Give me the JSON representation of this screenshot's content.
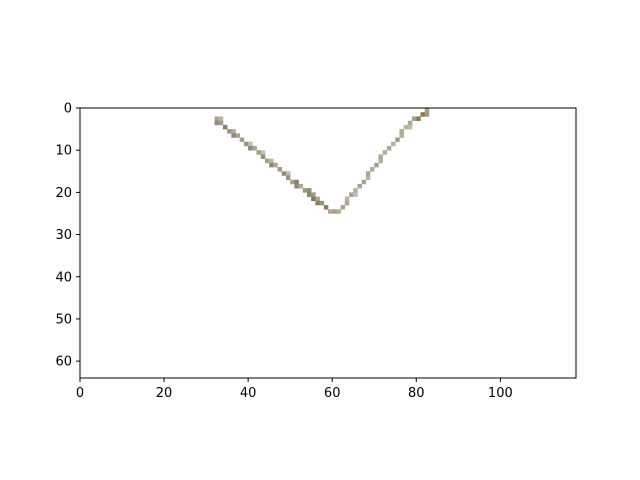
{
  "chart_data": {
    "type": "image",
    "title": "",
    "xlabel": "",
    "ylabel": "",
    "xlim": [
      0,
      118
    ],
    "ylim": [
      64,
      0
    ],
    "xticks": [
      0,
      20,
      40,
      60,
      80,
      100
    ],
    "yticks": [
      0,
      10,
      20,
      30,
      40,
      50,
      60
    ],
    "grid": false,
    "legend": "none",
    "background_color": "#ffffff",
    "image_width": 118,
    "image_height": 64,
    "stroke_pixels": [
      {
        "x": 32,
        "y": 2,
        "color": "#a7a394"
      },
      {
        "x": 33,
        "y": 2,
        "color": "#b8b2a3"
      },
      {
        "x": 32,
        "y": 3,
        "color": "#8f8a79"
      },
      {
        "x": 33,
        "y": 3,
        "color": "#a39d8d"
      },
      {
        "x": 34,
        "y": 4,
        "color": "#8b816b"
      },
      {
        "x": 35,
        "y": 5,
        "color": "#9d9786"
      },
      {
        "x": 36,
        "y": 5,
        "color": "#b0ab9c"
      },
      {
        "x": 36,
        "y": 6,
        "color": "#8f8977"
      },
      {
        "x": 37,
        "y": 6,
        "color": "#aaa596"
      },
      {
        "x": 38,
        "y": 7,
        "color": "#a59f8e"
      },
      {
        "x": 39,
        "y": 8,
        "color": "#9a9481"
      },
      {
        "x": 40,
        "y": 8,
        "color": "#c0bcae"
      },
      {
        "x": 40,
        "y": 9,
        "color": "#8f8a78"
      },
      {
        "x": 41,
        "y": 9,
        "color": "#aba697"
      },
      {
        "x": 42,
        "y": 10,
        "color": "#9f9a8a"
      },
      {
        "x": 43,
        "y": 10,
        "color": "#c3bfb1"
      },
      {
        "x": 43,
        "y": 11,
        "color": "#968f7c"
      },
      {
        "x": 44,
        "y": 12,
        "color": "#a49e8d"
      },
      {
        "x": 45,
        "y": 12,
        "color": "#beb9ab"
      },
      {
        "x": 45,
        "y": 13,
        "color": "#8e8876"
      },
      {
        "x": 46,
        "y": 13,
        "color": "#aba596"
      },
      {
        "x": 47,
        "y": 14,
        "color": "#9d9786"
      },
      {
        "x": 48,
        "y": 15,
        "color": "#8f8873"
      },
      {
        "x": 49,
        "y": 15,
        "color": "#bcb8aa"
      },
      {
        "x": 49,
        "y": 16,
        "color": "#999381"
      },
      {
        "x": 50,
        "y": 17,
        "color": "#a6a090"
      },
      {
        "x": 51,
        "y": 17,
        "color": "#8a8169"
      },
      {
        "x": 51,
        "y": 18,
        "color": "#8d8572"
      },
      {
        "x": 52,
        "y": 18,
        "color": "#aea899"
      },
      {
        "x": 53,
        "y": 19,
        "color": "#9b9583"
      },
      {
        "x": 54,
        "y": 19,
        "color": "#968e79"
      },
      {
        "x": 54,
        "y": 20,
        "color": "#8c8470"
      },
      {
        "x": 55,
        "y": 20,
        "color": "#a29b89"
      },
      {
        "x": 55,
        "y": 21,
        "color": "#86795c"
      },
      {
        "x": 56,
        "y": 21,
        "color": "#a9a28f"
      },
      {
        "x": 56,
        "y": 22,
        "color": "#8a7f65"
      },
      {
        "x": 57,
        "y": 22,
        "color": "#9a8f75"
      },
      {
        "x": 58,
        "y": 23,
        "color": "#8c7f61"
      },
      {
        "x": 59,
        "y": 24,
        "color": "#b3ab96"
      },
      {
        "x": 60,
        "y": 24,
        "color": "#a8a08a"
      },
      {
        "x": 61,
        "y": 24,
        "color": "#b2ac9b"
      },
      {
        "x": 62,
        "y": 23,
        "color": "#a9a493"
      },
      {
        "x": 63,
        "y": 22,
        "color": "#aaa494"
      },
      {
        "x": 63,
        "y": 21,
        "color": "#b8b3a4"
      },
      {
        "x": 64,
        "y": 20,
        "color": "#a8a293"
      },
      {
        "x": 65,
        "y": 20,
        "color": "#c0bcae"
      },
      {
        "x": 65,
        "y": 19,
        "color": "#b4ae9f"
      },
      {
        "x": 66,
        "y": 18,
        "color": "#aaa595"
      },
      {
        "x": 67,
        "y": 17,
        "color": "#a7a293"
      },
      {
        "x": 68,
        "y": 16,
        "color": "#b6b1a2"
      },
      {
        "x": 68,
        "y": 15,
        "color": "#aba697"
      },
      {
        "x": 69,
        "y": 14,
        "color": "#b3ae9f"
      },
      {
        "x": 70,
        "y": 13,
        "color": "#a6a191"
      },
      {
        "x": 71,
        "y": 12,
        "color": "#b5b0a1"
      },
      {
        "x": 71,
        "y": 11,
        "color": "#aca797"
      },
      {
        "x": 72,
        "y": 10,
        "color": "#b2ad9e"
      },
      {
        "x": 73,
        "y": 9,
        "color": "#aba696"
      },
      {
        "x": 74,
        "y": 8,
        "color": "#b6b1a2"
      },
      {
        "x": 75,
        "y": 7,
        "color": "#a39e8e"
      },
      {
        "x": 76,
        "y": 6,
        "color": "#b3ae9f"
      },
      {
        "x": 76,
        "y": 5,
        "color": "#aea999"
      },
      {
        "x": 77,
        "y": 4,
        "color": "#b7b2a3"
      },
      {
        "x": 78,
        "y": 4,
        "color": "#c0bcae"
      },
      {
        "x": 78,
        "y": 3,
        "color": "#aca797"
      },
      {
        "x": 79,
        "y": 2,
        "color": "#a79f8a"
      },
      {
        "x": 80,
        "y": 2,
        "color": "#8a7b5a"
      },
      {
        "x": 81,
        "y": 1,
        "color": "#927a4f"
      },
      {
        "x": 82,
        "y": 1,
        "color": "#a9957a"
      },
      {
        "x": 82,
        "y": 0,
        "color": "#b09e84"
      }
    ]
  }
}
